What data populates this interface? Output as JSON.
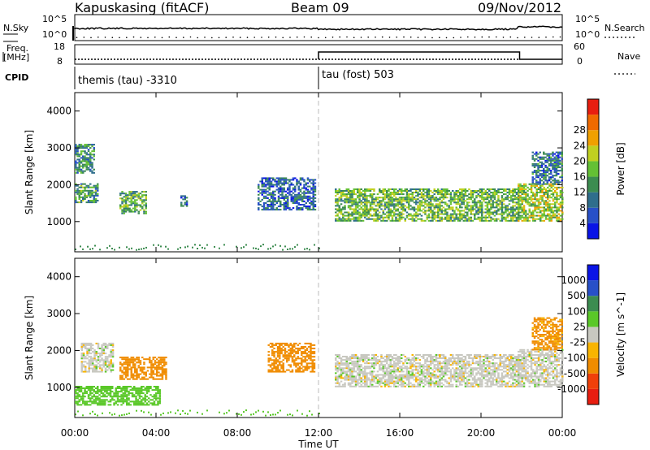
{
  "header": {
    "station": "Kapuskasing (fitACF)",
    "beam": "Beam 09",
    "date": "09/Nov/2012"
  },
  "side_labels": {
    "nsky": "N.Sky",
    "freq_line1": "Freq.",
    "freq_line2": "[MHz]",
    "cpid": "CPID",
    "nsearch": "N.Search",
    "nave": "Nave"
  },
  "axis_text": {
    "nsky_top": "10^5",
    "nsky_bottom": "10^0",
    "freq_top": "18",
    "freq_bottom": "8",
    "nave_top": "60",
    "nave_bottom": "0"
  },
  "cpid_segments": [
    {
      "label": "themis (tau) -3310",
      "start_hour": 0
    },
    {
      "label": "tau (fost) 503",
      "start_hour": 12
    }
  ],
  "colors": {
    "power": [
      "#0a14e6",
      "#2850c8",
      "#2f6e8c",
      "#3c8c50",
      "#64c034",
      "#c0d020",
      "#f0a000",
      "#f06a00",
      "#e81e10"
    ],
    "velocity": [
      "#e81e10",
      "#f0400a",
      "#f08c00",
      "#f8b400",
      "#c8c8c0",
      "#5ac828",
      "#3c8c50",
      "#2850c8",
      "#0a14e6"
    ]
  },
  "chart_data": [
    {
      "type": "heatmap",
      "name": "power",
      "ylabel": "Slant Range [km]",
      "xlabel": "Time UT",
      "xlim": [
        0,
        24
      ],
      "ylim": [
        180,
        4500
      ],
      "xticks": [
        0,
        4,
        8,
        12,
        16,
        20,
        24
      ],
      "xtick_labels": [
        "00:00",
        "04:00",
        "08:00",
        "12:00",
        "16:00",
        "20:00",
        "00:00"
      ],
      "yticks": [
        1000,
        2000,
        3000,
        4000
      ],
      "colorbar_label": "Power [dB]",
      "colorbar_ticks": [
        4,
        8,
        12,
        16,
        20,
        24,
        28
      ],
      "regions": [
        {
          "t0": 0.0,
          "t1": 0.9,
          "r0": 2300,
          "r1": 3100,
          "mean": 13
        },
        {
          "t0": 0.0,
          "t1": 1.1,
          "r0": 1500,
          "r1": 2000,
          "mean": 14
        },
        {
          "t0": 2.2,
          "t1": 3.5,
          "r0": 1200,
          "r1": 1800,
          "mean": 16
        },
        {
          "t0": 5.2,
          "t1": 5.5,
          "r0": 1400,
          "r1": 1700,
          "mean": 9
        },
        {
          "t0": 9.0,
          "t1": 11.8,
          "r0": 1300,
          "r1": 2200,
          "mean": 9
        },
        {
          "t0": 12.8,
          "t1": 21.8,
          "r0": 1000,
          "r1": 1900,
          "mean": 17
        },
        {
          "t0": 21.8,
          "t1": 24.0,
          "r0": 1000,
          "r1": 2000,
          "mean": 20
        },
        {
          "t0": 22.5,
          "t1": 24.0,
          "r0": 2000,
          "r1": 2900,
          "mean": 10
        }
      ]
    },
    {
      "type": "heatmap",
      "name": "velocity",
      "ylabel": "Slant Range [km]",
      "xlabel": "Time UT",
      "xlim": [
        0,
        24
      ],
      "ylim": [
        180,
        4500
      ],
      "xticks": [
        0,
        4,
        8,
        12,
        16,
        20,
        24
      ],
      "xtick_labels": [
        "00:00",
        "04:00",
        "08:00",
        "12:00",
        "16:00",
        "20:00",
        "00:00"
      ],
      "yticks": [
        1000,
        2000,
        3000,
        4000
      ],
      "colorbar_label": "Velocity [m s^-1]",
      "colorbar_ticks": [
        "1000",
        "500",
        "100",
        "25",
        "-25",
        "-100",
        "-500",
        "-1000"
      ],
      "regions": [
        {
          "t0": 0.3,
          "t1": 1.9,
          "r0": 1400,
          "r1": 2200,
          "mean": 0
        },
        {
          "t0": 0.0,
          "t1": 4.2,
          "r0": 500,
          "r1": 1000,
          "mean": 60
        },
        {
          "t0": 2.2,
          "t1": 4.5,
          "r0": 1200,
          "r1": 1800,
          "mean": -150
        },
        {
          "t0": 9.5,
          "t1": 11.8,
          "r0": 1400,
          "r1": 2200,
          "mean": -200
        },
        {
          "t0": 12.8,
          "t1": 21.8,
          "r0": 1000,
          "r1": 1900,
          "mean": 0
        },
        {
          "t0": 21.8,
          "t1": 24.0,
          "r0": 1000,
          "r1": 2000,
          "mean": 0
        },
        {
          "t0": 22.5,
          "t1": 24.0,
          "r0": 2000,
          "r1": 2900,
          "mean": -120
        }
      ]
    }
  ]
}
